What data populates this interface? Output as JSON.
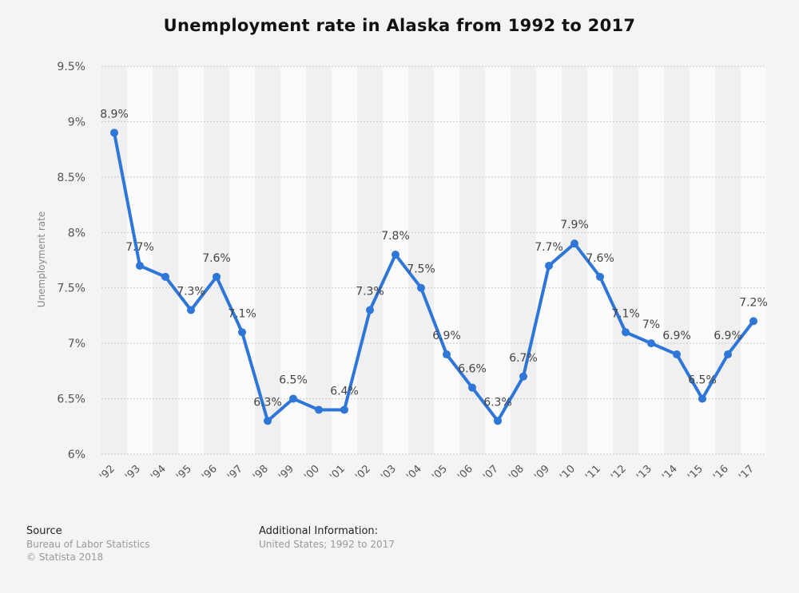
{
  "chart_data": {
    "type": "line",
    "title": "Unemployment rate in Alaska from 1992 to 2017",
    "ylabel": "Unemployment rate",
    "xlabel": "",
    "categories": [
      "'92",
      "'93",
      "'94",
      "'95",
      "'96",
      "'97",
      "'98",
      "'99",
      "'00",
      "'01",
      "'02",
      "'03",
      "'04",
      "'05",
      "'06",
      "'07",
      "'08",
      "'09",
      "'10",
      "'11",
      "'12",
      "'13",
      "'14",
      "'15",
      "'16",
      "'17"
    ],
    "series": [
      {
        "values": [
          8.9,
          7.7,
          7.6,
          7.3,
          7.6,
          7.1,
          6.3,
          6.5,
          6.4,
          6.4,
          7.3,
          7.8,
          7.5,
          6.9,
          6.6,
          6.3,
          6.7,
          7.7,
          7.9,
          7.6,
          7.1,
          7.0,
          6.9,
          6.5,
          6.9,
          7.2
        ],
        "labels": [
          "8.9%",
          "7.7%",
          "",
          "7.3%",
          "7.6%",
          "7.1%",
          "6.3%",
          "6.5%",
          "",
          "6.4%",
          "7.3%",
          "7.8%",
          "7.5%",
          "6.9%",
          "6.6%",
          "6.3%",
          "6.7%",
          "7.7%",
          "7.9%",
          "7.6%",
          "7.1%",
          "7%",
          "6.9%",
          "6.5%",
          "6.9%",
          "7.2%"
        ],
        "color": "#2f76d9"
      }
    ],
    "ylim": [
      6,
      9.5
    ],
    "yticks": [
      6,
      6.5,
      7,
      7.5,
      8,
      8.5,
      9,
      9.5
    ],
    "ytick_labels": [
      "6%",
      "6.5%",
      "7%",
      "7.5%",
      "8%",
      "8.5%",
      "9%",
      "9.5%"
    ],
    "grid": true
  },
  "footer": {
    "source_title": "Source",
    "source_line1": "Bureau of Labor Statistics",
    "source_line2": "© Statista 2018",
    "info_title": "Additional Information:",
    "info_line1": "United States; 1992 to 2017"
  },
  "colors": {
    "line": "#2f76d9",
    "band_light": "#fbfbfb",
    "band_dark": "#f0f0f0",
    "background": "#f4f4f4"
  }
}
